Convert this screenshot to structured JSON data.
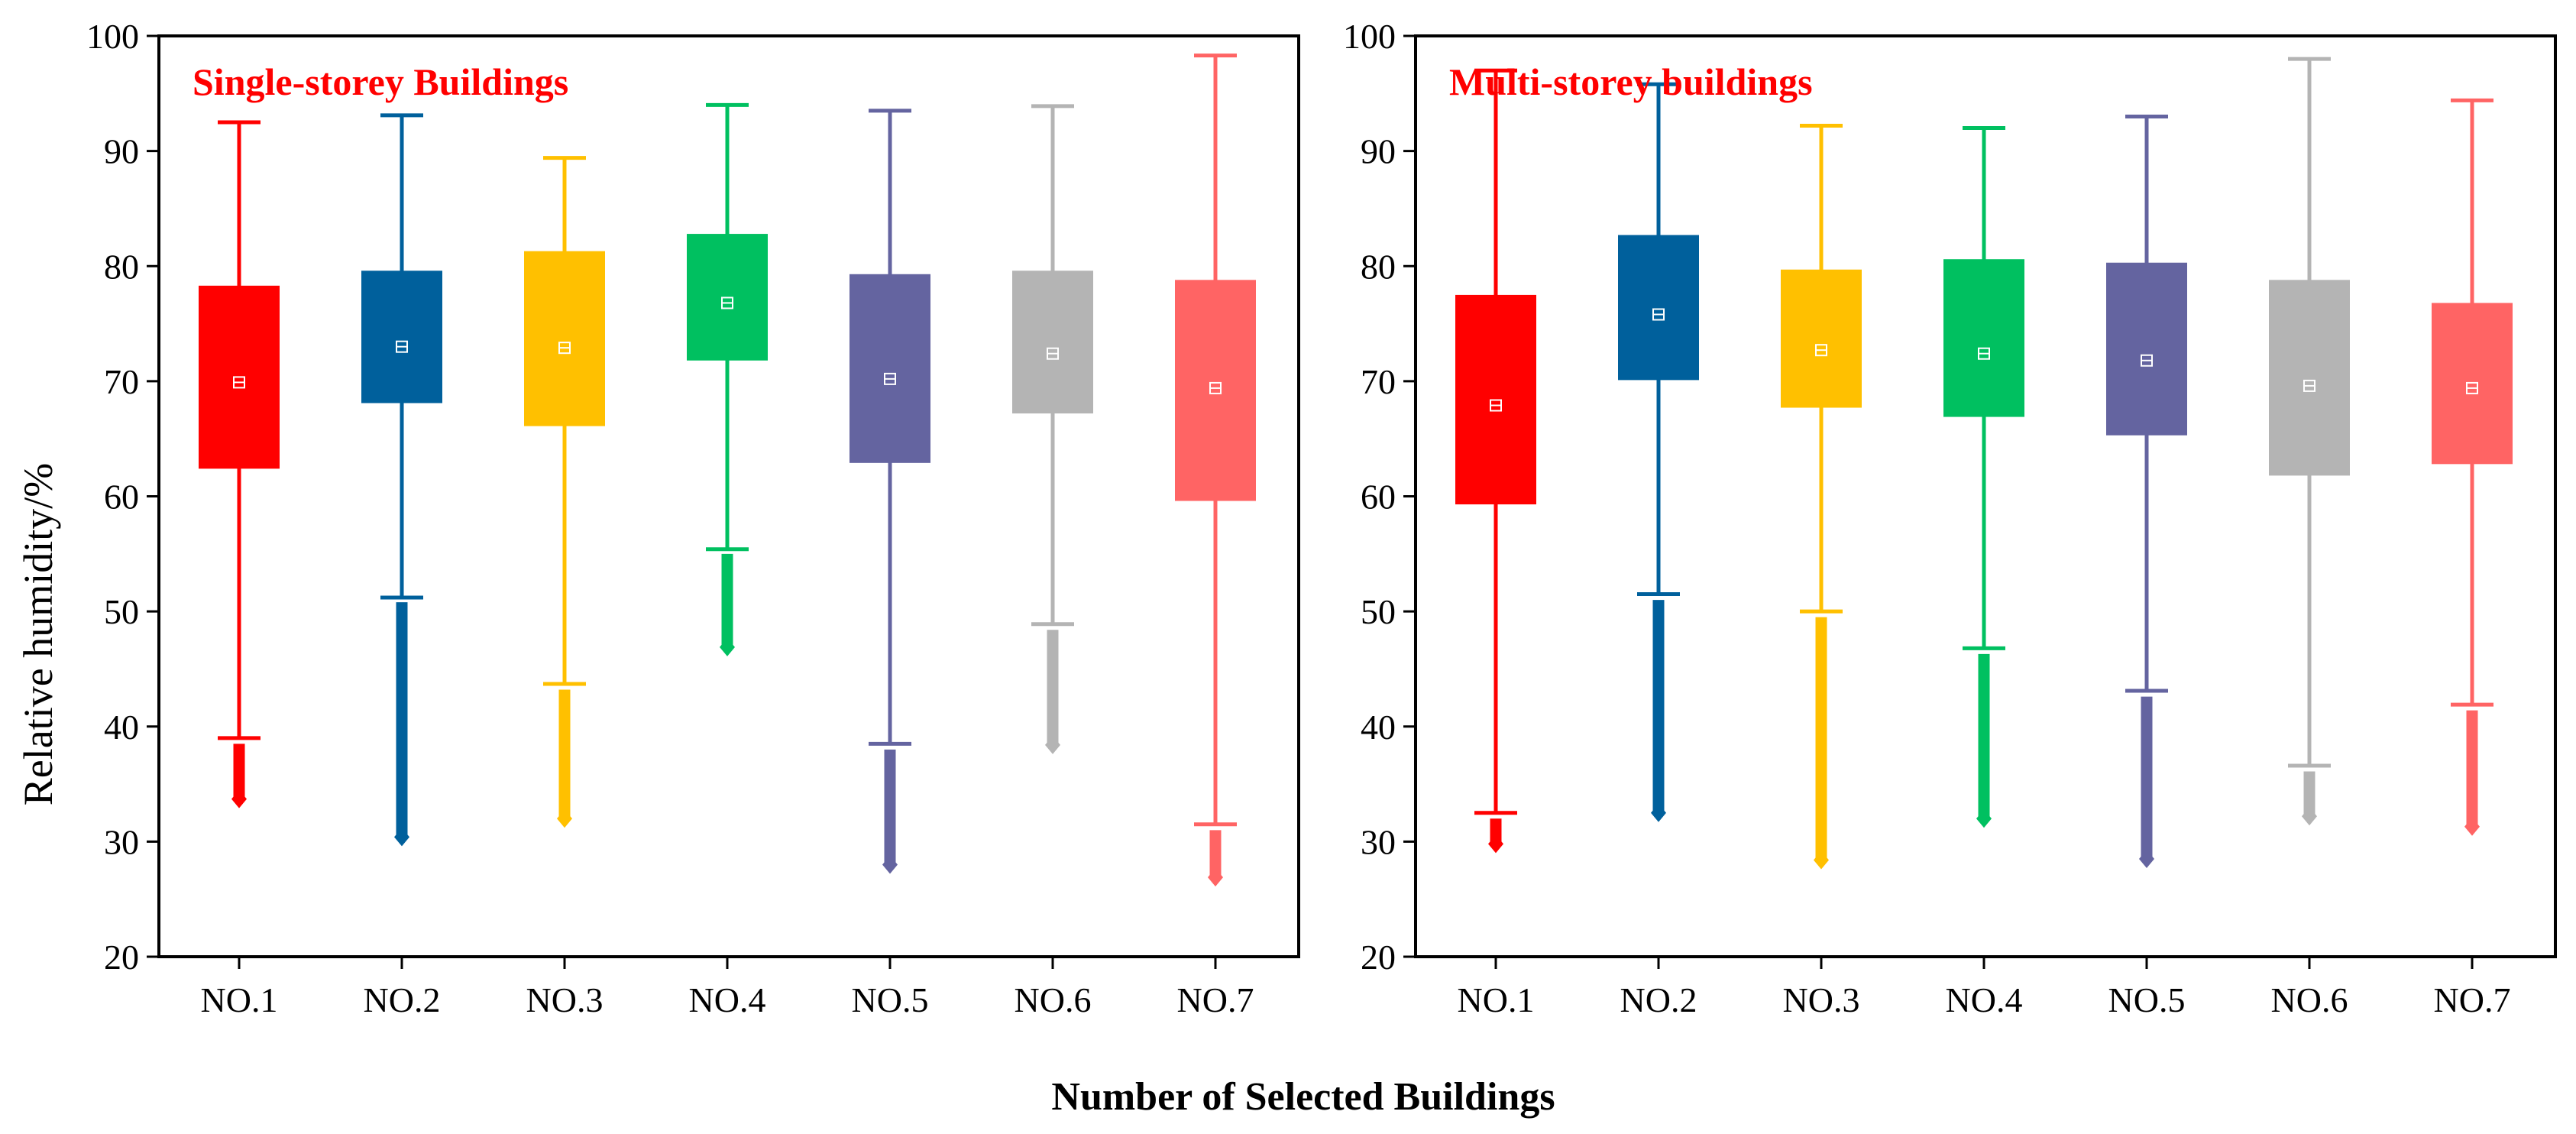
{
  "figure": {
    "ylabel": "Relative humidity/%",
    "xlabel": "Number of Selected Buildings",
    "title_color": "#ff0000"
  },
  "chart_data": [
    {
      "type": "box",
      "title": "Single-storey Buildings",
      "ylim": [
        20,
        100
      ],
      "yticks": [
        "20",
        "30",
        "40",
        "50",
        "60",
        "70",
        "80",
        "90",
        "100"
      ],
      "categories": [
        "NO.1",
        "NO.2",
        "NO.3",
        "NO.4",
        "NO.5",
        "NO.6",
        "NO.7"
      ],
      "colors": [
        "#ff0000",
        "#00609c",
        "#ffc000",
        "#00c060",
        "#6464a0",
        "#b4b4b4",
        "#ff6464"
      ],
      "series": [
        {
          "whisker_high": 92.5,
          "q3": 78.3,
          "mean": 69.9,
          "q1": 62.4,
          "whisker_low": 39.0,
          "outliers_top": 38.5,
          "outliers_bottom": 33.7
        },
        {
          "whisker_high": 93.1,
          "q3": 79.6,
          "mean": 73.0,
          "q1": 68.1,
          "whisker_low": 51.2,
          "outliers_top": 50.8,
          "outliers_bottom": 30.4
        },
        {
          "whisker_high": 89.4,
          "q3": 81.3,
          "mean": 72.9,
          "q1": 66.1,
          "whisker_low": 43.7,
          "outliers_top": 43.2,
          "outliers_bottom": 32.0
        },
        {
          "whisker_high": 94.0,
          "q3": 82.8,
          "mean": 76.8,
          "q1": 71.8,
          "whisker_low": 55.4,
          "outliers_top": 55.0,
          "outliers_bottom": 46.9
        },
        {
          "whisker_high": 93.5,
          "q3": 79.3,
          "mean": 70.2,
          "q1": 62.9,
          "whisker_low": 38.5,
          "outliers_top": 38.0,
          "outliers_bottom": 28.0
        },
        {
          "whisker_high": 93.9,
          "q3": 79.6,
          "mean": 72.4,
          "q1": 67.2,
          "whisker_low": 48.9,
          "outliers_top": 48.4,
          "outliers_bottom": 38.4
        },
        {
          "whisker_high": 98.3,
          "q3": 78.8,
          "mean": 69.4,
          "q1": 59.6,
          "whisker_low": 31.5,
          "outliers_top": 31.0,
          "outliers_bottom": 26.9
        }
      ]
    },
    {
      "type": "box",
      "title": "Multi-storey buildings",
      "ylim": [
        20,
        100
      ],
      "yticks": [
        "20",
        "30",
        "40",
        "50",
        "60",
        "70",
        "80",
        "90",
        "100"
      ],
      "categories": [
        "NO.1",
        "NO.2",
        "NO.3",
        "NO.4",
        "NO.5",
        "NO.6",
        "NO.7"
      ],
      "colors": [
        "#ff0000",
        "#00609c",
        "#ffc000",
        "#00c060",
        "#6464a0",
        "#b4b4b4",
        "#ff6464"
      ],
      "series": [
        {
          "whisker_high": 97.0,
          "q3": 77.5,
          "mean": 67.9,
          "q1": 59.3,
          "whisker_low": 32.5,
          "outliers_top": 32.0,
          "outliers_bottom": 29.8
        },
        {
          "whisker_high": 95.8,
          "q3": 82.7,
          "mean": 75.8,
          "q1": 70.1,
          "whisker_low": 51.5,
          "outliers_top": 51.0,
          "outliers_bottom": 32.5
        },
        {
          "whisker_high": 92.2,
          "q3": 79.7,
          "mean": 72.7,
          "q1": 67.7,
          "whisker_low": 50.0,
          "outliers_top": 49.5,
          "outliers_bottom": 28.4
        },
        {
          "whisker_high": 92.0,
          "q3": 80.6,
          "mean": 72.4,
          "q1": 66.9,
          "whisker_low": 46.8,
          "outliers_top": 46.3,
          "outliers_bottom": 32.0
        },
        {
          "whisker_high": 93.0,
          "q3": 80.3,
          "mean": 71.8,
          "q1": 65.3,
          "whisker_low": 43.1,
          "outliers_top": 42.6,
          "outliers_bottom": 28.5
        },
        {
          "whisker_high": 98.0,
          "q3": 78.8,
          "mean": 69.6,
          "q1": 61.8,
          "whisker_low": 36.6,
          "outliers_top": 36.1,
          "outliers_bottom": 32.2
        },
        {
          "whisker_high": 94.4,
          "q3": 76.8,
          "mean": 69.4,
          "q1": 62.8,
          "whisker_low": 41.9,
          "outliers_top": 41.4,
          "outliers_bottom": 31.3
        }
      ]
    }
  ]
}
